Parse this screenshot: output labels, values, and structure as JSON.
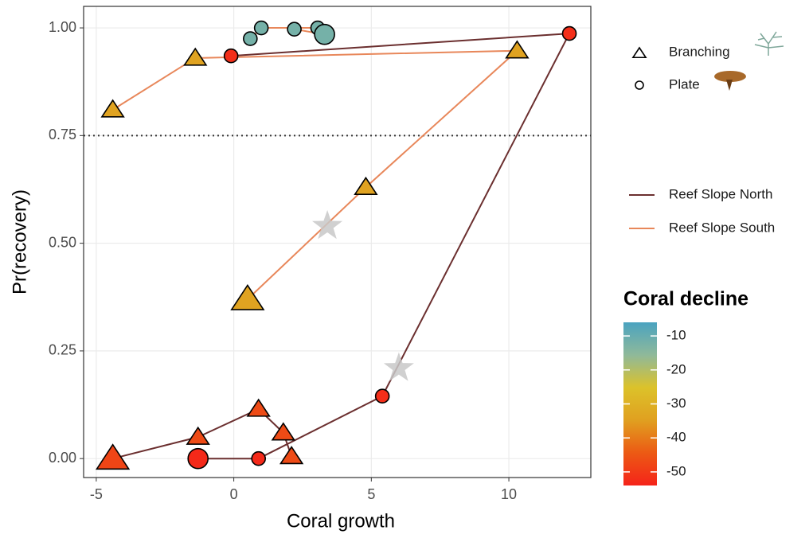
{
  "chart_data": {
    "type": "scatter",
    "x_label": "Coral growth",
    "y_label": "Pr(recovery)",
    "xlim": [
      -5.46,
      12.98
    ],
    "ylim": [
      -0.044,
      1.05
    ],
    "xticks": [
      -5,
      0,
      5,
      10
    ],
    "yticks": [
      {
        "value": 0,
        "label": "0.00"
      },
      {
        "value": 0.25,
        "label": "0.25"
      },
      {
        "value": 0.5,
        "label": "0.50"
      },
      {
        "value": 0.75,
        "label": "0.75"
      },
      {
        "value": 1,
        "label": "1.00"
      }
    ],
    "grid": true,
    "hline": 0.75,
    "shapes": [
      "Branching",
      "Plate"
    ],
    "series": [
      {
        "name": "Reef Slope North",
        "color": "#6b2f2f",
        "paths": [
          {
            "shape": "Plate",
            "x": [
              -1.3,
              0.9,
              5.4,
              12.2,
              -0.1
            ],
            "values": [
              0,
              0,
              0.145,
              0.987,
              0.935
            ],
            "sizes": [
              4,
              2,
              2,
              2,
              2
            ],
            "decline": [
              -53,
              -53,
              -52,
              -52,
              -52
            ]
          },
          {
            "shape": "Branching",
            "x": [
              -4.4,
              -1.3,
              0.9,
              1.8,
              2.1
            ],
            "values": [
              0,
              0.05,
              0.115,
              0.06,
              0.005
            ],
            "sizes": [
              4,
              2,
              2,
              2,
              2
            ],
            "decline": [
              -48,
              -47,
              -47,
              -47,
              -47
            ]
          }
        ]
      },
      {
        "name": "Reef Slope South",
        "color": "#e8875a",
        "paths": [
          {
            "shape": "Branching",
            "x": [
              -4.4,
              -1.4,
              10.3,
              4.8,
              0.5
            ],
            "values": [
              0.81,
              0.93,
              0.947,
              0.63,
              0.37
            ],
            "sizes": [
              2,
              2,
              2,
              2,
              4
            ],
            "decline": [
              -34,
              -34,
              -34,
              -34,
              -34
            ]
          },
          {
            "shape": "Plate",
            "x": [
              0.6,
              1.0,
              3.05,
              3.3,
              2.2
            ],
            "values": [
              0.975,
              1.0,
              1.0,
              0.985,
              0.997
            ],
            "sizes": [
              2,
              2,
              2,
              4,
              2
            ],
            "decline": [
              -12,
              -12,
              -12,
              -12,
              -12
            ]
          }
        ]
      }
    ],
    "stars": {
      "x": [
        3.4,
        6.0
      ],
      "values": [
        0.54,
        0.21
      ],
      "color": "#c8c8c8"
    },
    "colorbar": {
      "title": "Coral decline",
      "limits": [
        -54,
        -6
      ],
      "colors": [
        "#f5231a",
        "#ec5a14",
        "#e0a020",
        "#dcc22a",
        "#8fb99a",
        "#4aa3c0"
      ],
      "ticks": [
        -10,
        -20,
        -30,
        -40,
        -50
      ]
    }
  }
}
